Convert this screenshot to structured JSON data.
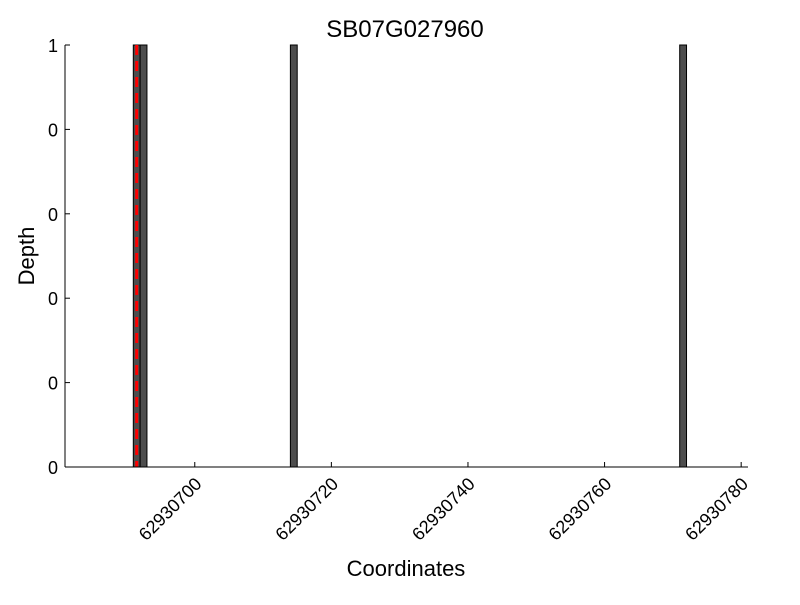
{
  "chart_data": {
    "type": "bar",
    "title": "SB07G027960",
    "xlabel": "Coordinates",
    "ylabel": "Depth",
    "xlim": [
      62930681,
      62930781
    ],
    "ylim": [
      0,
      1
    ],
    "xticks": [
      62930700,
      62930720,
      62930740,
      62930760,
      62930780
    ],
    "xtick_labels": [
      "62930700",
      "62930720",
      "62930740",
      "62930760",
      "62930780"
    ],
    "yticks": [
      0,
      0.2,
      0.4,
      0.6,
      0.8,
      1
    ],
    "ytick_labels": [
      "0",
      "0",
      "0",
      "0",
      "0",
      "1"
    ],
    "bars": [
      {
        "x": 62930691,
        "value": 1
      },
      {
        "x": 62930692,
        "value": 1
      },
      {
        "x": 62930714,
        "value": 1
      },
      {
        "x": 62930771,
        "value": 1
      }
    ],
    "bar_width": 1,
    "marker_line": {
      "x": 62930691.5,
      "style": "dashed"
    },
    "grid": false,
    "colors": {
      "bar": "#4d4d4d",
      "marker": "#ff0000"
    }
  }
}
